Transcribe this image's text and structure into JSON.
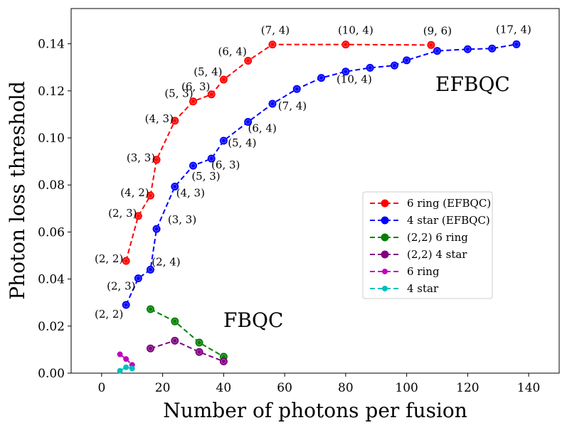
{
  "chart_data": {
    "type": "line",
    "xlabel": "Number of photons per fusion",
    "ylabel": "Photon loss threshold",
    "xlim": [
      -10,
      150
    ],
    "ylim": [
      0,
      0.155
    ],
    "xticks": [
      "0",
      "20",
      "40",
      "60",
      "80",
      "100",
      "120",
      "140"
    ],
    "yticks": [
      "0.00",
      "0.02",
      "0.04",
      "0.06",
      "0.08",
      "0.10",
      "0.12",
      "0.14"
    ],
    "grid": false,
    "legend_position": "center-right",
    "annotations": {
      "efbqc": "EFBQC",
      "fbqc": "FBQC"
    },
    "series": [
      {
        "name": "6 ring (EFBQC)",
        "color": "#ff0000",
        "marker": "large",
        "x": [
          8,
          12,
          16,
          18,
          24,
          30,
          36,
          40,
          48,
          56,
          80,
          108
        ],
        "y": [
          0.0477,
          0.0668,
          0.0755,
          0.0907,
          0.1073,
          0.1155,
          0.1185,
          0.1248,
          0.1328,
          0.1397,
          0.1397,
          0.1395
        ],
        "point_labels": [
          "(2, 2)",
          "(2, 3)",
          "(4, 2)",
          "(3, 3)",
          "(4, 3)",
          "(5, 3)",
          "(6, 3)",
          "(5, 4)",
          "(6, 4)",
          "(7, 4)",
          "(10, 4)",
          "(9, 6)"
        ]
      },
      {
        "name": "4 star (EFBQC)",
        "color": "#0000ff",
        "marker": "large",
        "x": [
          8,
          12,
          16,
          18,
          24,
          30,
          36,
          40,
          48,
          56,
          64,
          72,
          80,
          88,
          96,
          100,
          110,
          120,
          128,
          136
        ],
        "y": [
          0.029,
          0.0403,
          0.044,
          0.0613,
          0.0793,
          0.0882,
          0.0912,
          0.0988,
          0.1068,
          0.1145,
          0.1208,
          0.1255,
          0.1282,
          0.1298,
          0.1308,
          0.133,
          0.137,
          0.1377,
          0.138,
          0.1398
        ],
        "point_labels": [
          "(2, 2)",
          "(2, 3)",
          "(2, 4)",
          "(3, 3)",
          "(4, 3)",
          "(5, 3)",
          "(6, 3)",
          "(5, 4)",
          "(6, 4)",
          "(7, 4)",
          "",
          "",
          "(10, 4)",
          "",
          "",
          "",
          "",
          "",
          "",
          "(17, 4)"
        ]
      },
      {
        "name": "(2,2) 6 ring",
        "color": "#008000",
        "marker": "large",
        "x": [
          16,
          24,
          32,
          40
        ],
        "y": [
          0.0272,
          0.022,
          0.013,
          0.007
        ]
      },
      {
        "name": "(2,2) 4 star",
        "color": "#800080",
        "marker": "large",
        "x": [
          16,
          24,
          32,
          40
        ],
        "y": [
          0.0105,
          0.0138,
          0.009,
          0.005
        ]
      },
      {
        "name": "6 ring",
        "color": "#bf00bf",
        "marker": "small",
        "x": [
          6,
          8,
          10
        ],
        "y": [
          0.008,
          0.006,
          0.0035
        ]
      },
      {
        "name": "4 star",
        "color": "#00bfbf",
        "marker": "small",
        "x": [
          6,
          8,
          10
        ],
        "y": [
          0.001,
          0.0025,
          0.002
        ]
      }
    ]
  }
}
